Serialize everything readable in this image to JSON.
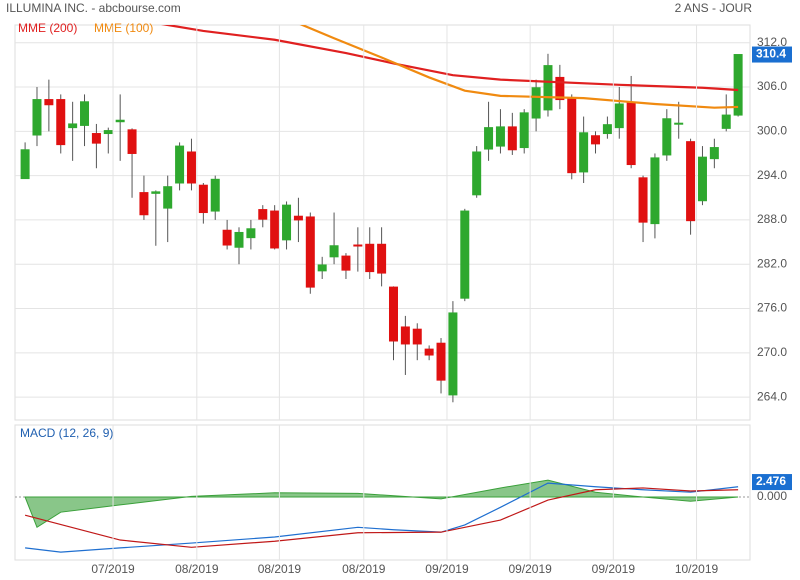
{
  "chart_data": [
    {
      "type": "candlestick",
      "title": "ILLUMINA INC. - abcbourse.com",
      "period": "2 ANS - JOUR",
      "xlim": [
        -0.85,
        61
      ],
      "ylim": [
        260.9,
        314.4
      ],
      "yticks": [
        {
          "value": 264,
          "label": "264.0"
        },
        {
          "value": 270,
          "label": "270.0"
        },
        {
          "value": 276,
          "label": "276.0"
        },
        {
          "value": 282,
          "label": "282.0"
        },
        {
          "value": 288,
          "label": "288.0"
        },
        {
          "value": 294,
          "label": "294.0"
        },
        {
          "value": 300,
          "label": "300.0"
        },
        {
          "value": 306,
          "label": "306.0"
        },
        {
          "value": 312,
          "label": "312.0"
        }
      ],
      "up_color": "#2ea82e",
      "down_color": "#e01010",
      "last_color": "#1a6fd1",
      "open": [
        293.6,
        299.5,
        304.3,
        304.3,
        300.5,
        300.8,
        299.7,
        299.7,
        301.3,
        300.2,
        291.7,
        291.6,
        289.6,
        293,
        297.2,
        292.7,
        289.2,
        286.6,
        284.3,
        285.6,
        289.4,
        289.2,
        285.3,
        288.5,
        288.4,
        281.1,
        283,
        283.1,
        284.6,
        284.7,
        284.7,
        278.9,
        273.5,
        273.2,
        270.5,
        271.3,
        264.3,
        277.4,
        291.4,
        297.6,
        298,
        300.6,
        297.8,
        301.8,
        302.9,
        307.3,
        304.5,
        294.5,
        299.4,
        299.7,
        300.5,
        303.9,
        293.7,
        287.5,
        296.8,
        301,
        298.6,
        290.6,
        296.3,
        300.4,
        302.2
      ],
      "high": [
        298.5,
        306,
        307,
        305,
        304,
        305,
        301,
        300.5,
        305,
        300.4,
        294,
        292,
        294,
        298.5,
        299,
        293,
        294,
        288,
        287,
        288,
        290,
        290,
        290.5,
        291,
        289,
        283,
        289,
        283.5,
        287,
        287,
        287,
        279,
        275,
        274,
        271,
        272,
        277,
        289.5,
        298,
        304,
        303,
        302.5,
        303,
        307,
        310.5,
        309,
        305,
        302,
        300,
        302,
        306,
        307.5,
        294,
        297,
        303,
        304,
        299,
        298,
        299,
        305,
        310.4
      ],
      "low": [
        293.6,
        298,
        300,
        297,
        296,
        298,
        295,
        297,
        296,
        291,
        288,
        284.5,
        285,
        292,
        292,
        287.5,
        288,
        284,
        282,
        284,
        287,
        284,
        284,
        285,
        278,
        280,
        282,
        280,
        281,
        280,
        279,
        269,
        267,
        269,
        269,
        264.5,
        263.3,
        277,
        291,
        296,
        297,
        296.8,
        297,
        300,
        302,
        303,
        293.5,
        293,
        297,
        299,
        299,
        295,
        285,
        285.5,
        296,
        299,
        286,
        290,
        295,
        300,
        302
      ],
      "close": [
        297.5,
        304.3,
        303.6,
        298.2,
        301,
        304,
        298.4,
        300.1,
        301.5,
        297,
        288.7,
        291.8,
        292.5,
        298,
        293,
        289,
        293.5,
        284.6,
        286.3,
        286.8,
        288.1,
        284.2,
        290,
        288,
        278.9,
        281.9,
        284.5,
        281.2,
        284.5,
        281,
        280.8,
        271.6,
        271.2,
        271.2,
        269.7,
        266.3,
        275.4,
        289.2,
        297.2,
        300.5,
        300.6,
        297.5,
        302.5,
        305.9,
        308.9,
        304.3,
        294.4,
        299.8,
        298.3,
        300.9,
        303.7,
        295.5,
        287.7,
        296.4,
        301.7,
        301.1,
        287.9,
        296.5,
        297.8,
        302.2,
        310.4
      ],
      "last_label": "310.4",
      "series": [
        {
          "name": "MME (200)",
          "color": "#e02020",
          "x": [
            9,
            15,
            21,
            27,
            31,
            36,
            40,
            50,
            57,
            60
          ],
          "values": [
            315.2,
            313.6,
            312.4,
            310.6,
            309.2,
            307.6,
            307,
            306.3,
            305.9,
            305.6
          ]
        },
        {
          "name": "MME (100)",
          "color": "#f08a10",
          "x": [
            22,
            26,
            30,
            34,
            37,
            40,
            47,
            53,
            58,
            60
          ],
          "values": [
            315.3,
            312.6,
            310,
            307.3,
            305.5,
            304.8,
            304.5,
            303.7,
            303.2,
            303.3
          ]
        }
      ]
    },
    {
      "type": "line",
      "title": "MACD (12, 26, 9)",
      "xlim": [
        -0.85,
        61
      ],
      "ylim": [
        -10.4,
        11.9
      ],
      "yticks": [
        {
          "value": 0,
          "label": "0.000"
        }
      ],
      "last_label": "2.476",
      "last_value": 2.476,
      "xticks": [
        {
          "value": 7.4,
          "label": "07/2019"
        },
        {
          "value": 14.45,
          "label": "08/2019"
        },
        {
          "value": 21.4,
          "label": "08/2019"
        },
        {
          "value": 28.5,
          "label": "08/2019"
        },
        {
          "value": 35.5,
          "label": "09/2019"
        },
        {
          "value": 42.5,
          "label": "09/2019"
        },
        {
          "value": 49.5,
          "label": "09/2019"
        },
        {
          "value": 56.5,
          "label": "10/2019"
        }
      ],
      "series": [
        {
          "kind": "area",
          "color": "#3aa03a",
          "x": [
            0,
            1,
            3,
            8,
            14,
            21,
            28,
            35,
            40,
            44,
            48,
            52,
            56,
            60
          ],
          "values": [
            0,
            -5,
            -2.5,
            -1.3,
            0.1,
            0.7,
            0.6,
            -0.3,
            1.5,
            2.8,
            0.8,
            0,
            -0.7,
            0
          ]
        },
        {
          "kind": "line",
          "color": "#1f6fd0",
          "x": [
            0,
            3,
            8,
            14,
            21,
            28,
            31,
            35,
            37,
            40,
            44,
            48,
            52,
            56,
            60
          ],
          "values": [
            -8.4,
            -9.1,
            -8.4,
            -7.6,
            -6.6,
            -5,
            -5.4,
            -5.8,
            -4.6,
            -1.7,
            2.3,
            1.7,
            1.2,
            0.8,
            1.7
          ]
        },
        {
          "kind": "line",
          "color": "#c01818",
          "x": [
            0,
            8,
            14,
            21,
            28,
            35,
            40,
            44,
            48,
            52,
            56,
            60
          ],
          "values": [
            -3,
            -7.1,
            -8.3,
            -7.3,
            -5.9,
            -5.8,
            -3.8,
            -0.5,
            1.2,
            1.5,
            1,
            1.2
          ]
        }
      ]
    }
  ]
}
